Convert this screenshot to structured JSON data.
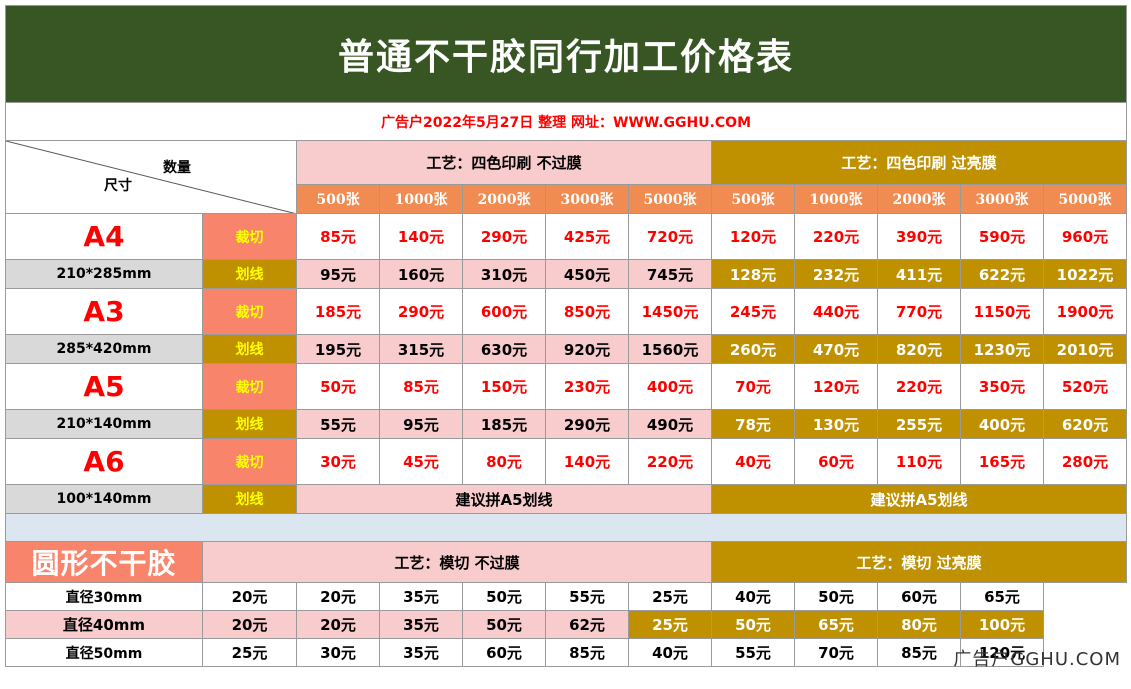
{
  "title": "普通不干胶同行加工价格表",
  "subtitle": "广告户2022年5月27日 整理 网址：WWW.GGHU.COM",
  "header": {
    "quantity_label": "数量",
    "size_label": "尺寸",
    "process_plain": "工艺：四色印刷 不过膜",
    "process_gloss": "工艺：四色印刷 过亮膜",
    "quantities": [
      "500张",
      "1000张",
      "2000张",
      "3000张",
      "5000张"
    ]
  },
  "methods": {
    "cut": "裁切",
    "line": "划线"
  },
  "rows": [
    {
      "size": "A4",
      "dim": "210*285mm",
      "cut_plain": [
        "85元",
        "140元",
        "290元",
        "425元",
        "720元"
      ],
      "cut_gloss": [
        "120元",
        "220元",
        "390元",
        "590元",
        "960元"
      ],
      "line_plain": [
        "95元",
        "160元",
        "310元",
        "450元",
        "745元"
      ],
      "line_gloss": [
        "128元",
        "232元",
        "411元",
        "622元",
        "1022元"
      ]
    },
    {
      "size": "A3",
      "dim": "285*420mm",
      "cut_plain": [
        "185元",
        "290元",
        "600元",
        "850元",
        "1450元"
      ],
      "cut_gloss": [
        "245元",
        "440元",
        "770元",
        "1150元",
        "1900元"
      ],
      "line_plain": [
        "195元",
        "315元",
        "630元",
        "920元",
        "1560元"
      ],
      "line_gloss": [
        "260元",
        "470元",
        "820元",
        "1230元",
        "2010元"
      ]
    },
    {
      "size": "A5",
      "dim": "210*140mm",
      "cut_plain": [
        "50元",
        "85元",
        "150元",
        "230元",
        "400元"
      ],
      "cut_gloss": [
        "70元",
        "120元",
        "220元",
        "350元",
        "520元"
      ],
      "line_plain": [
        "55元",
        "95元",
        "185元",
        "290元",
        "490元"
      ],
      "line_gloss": [
        "78元",
        "130元",
        "255元",
        "400元",
        "620元"
      ]
    },
    {
      "size": "A6",
      "dim": "100*140mm",
      "cut_plain": [
        "30元",
        "45元",
        "80元",
        "140元",
        "220元"
      ],
      "cut_gloss": [
        "40元",
        "60元",
        "110元",
        "165元",
        "280元"
      ],
      "line_note_plain": "建议拼A5划线",
      "line_note_gloss": "建议拼A5划线"
    }
  ],
  "round": {
    "label": "圆形不干胶",
    "process_plain": "工艺：模切 不过膜",
    "process_gloss": "工艺：模切 过亮膜",
    "rows": [
      {
        "diameter": "直径30mm",
        "plain": [
          "20元",
          "20元",
          "35元",
          "50元",
          "55元"
        ],
        "gloss": [
          "25元",
          "40元",
          "50元",
          "60元",
          "65元"
        ]
      },
      {
        "diameter": "直径40mm",
        "plain": [
          "20元",
          "20元",
          "35元",
          "50元",
          "62元"
        ],
        "gloss": [
          "25元",
          "50元",
          "65元",
          "80元",
          "100元"
        ]
      },
      {
        "diameter": "直径50mm",
        "plain": [
          "25元",
          "30元",
          "35元",
          "60元",
          "85元"
        ],
        "gloss": [
          "40元",
          "55元",
          "70元",
          "85元",
          "120元"
        ]
      }
    ]
  },
  "watermark": "广告户GGHU.COM",
  "colors": {
    "title_bg": "#375623",
    "gold": "#bf9000",
    "pink": "#f8cbcc",
    "salmon": "#f8846c",
    "orange": "#f08c52",
    "red_text": "#ff0000",
    "spacer": "#dce6f1"
  }
}
